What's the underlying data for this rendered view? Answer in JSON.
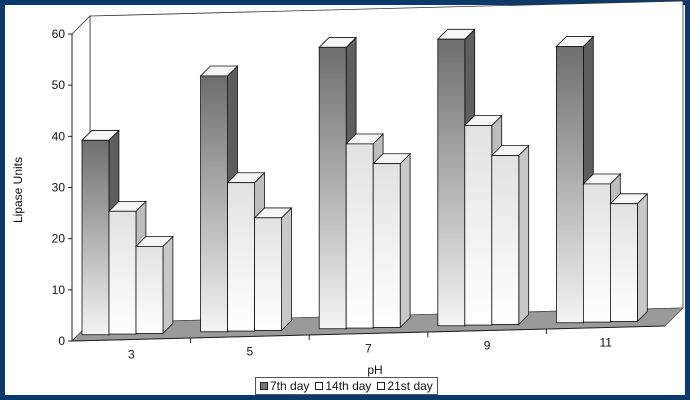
{
  "chart_data": {
    "type": "bar",
    "style": "3d-clustered-column",
    "xlabel": "pH",
    "ylabel": "Lipase Units",
    "categories": [
      "3",
      "5",
      "7",
      "9",
      "11"
    ],
    "ylim": [
      0,
      60
    ],
    "yticks": [
      "0",
      "10",
      "20",
      "30",
      "40",
      "50",
      "60"
    ],
    "series": [
      {
        "name": "7th day",
        "values": [
          38,
          50,
          55,
          56,
          54
        ],
        "color": "#777777"
      },
      {
        "name": "14th day",
        "values": [
          24,
          29,
          36,
          39,
          27
        ],
        "color": "#e8e8e8"
      },
      {
        "name": "21st day",
        "values": [
          17,
          22,
          32,
          33,
          23
        ],
        "color": "#f2f2f2"
      }
    ],
    "grid": false,
    "legend": "bottom"
  }
}
